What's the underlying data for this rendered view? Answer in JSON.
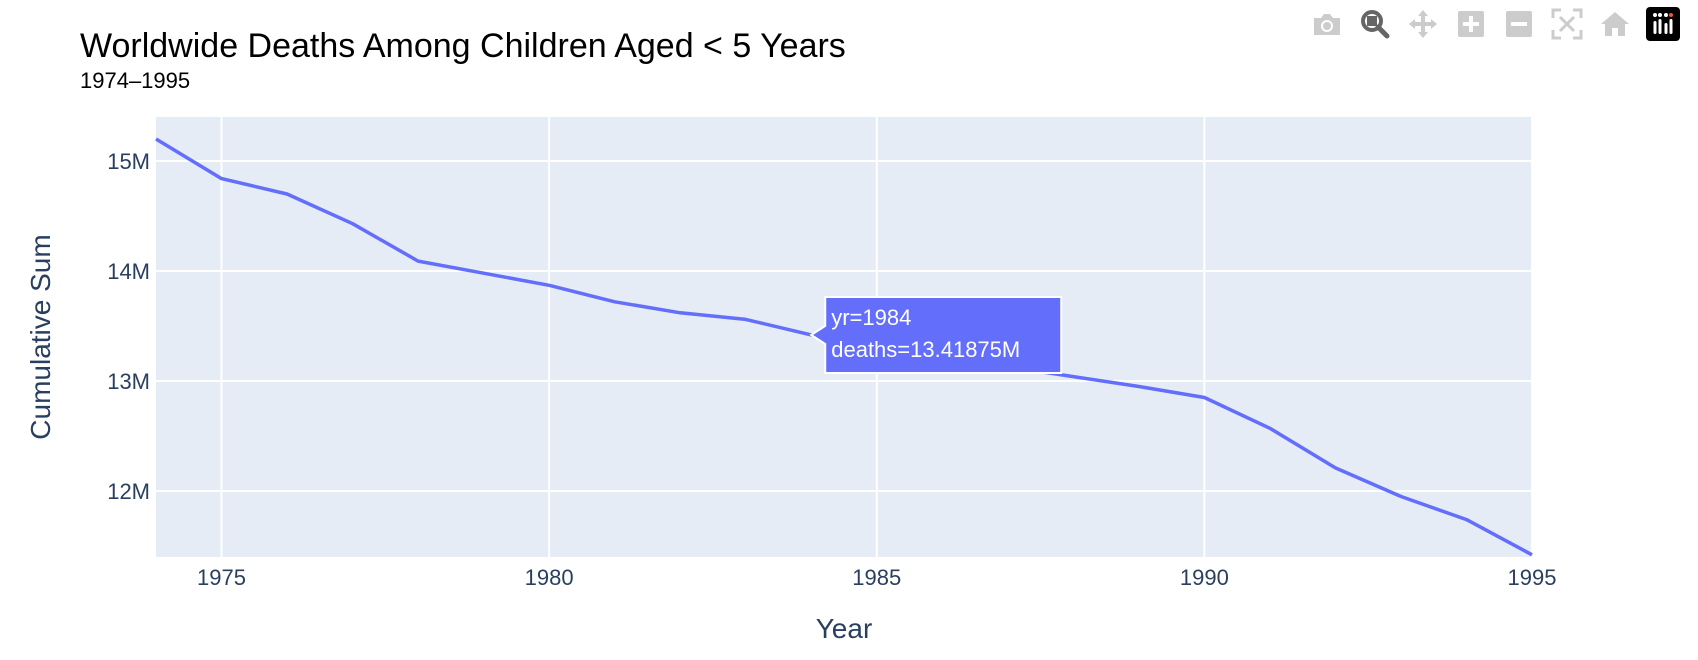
{
  "modebar": {
    "buttons": [
      {
        "name": "camera-icon",
        "label": "Download plot as a png"
      },
      {
        "name": "zoom-icon",
        "label": "Zoom"
      },
      {
        "name": "pan-icon",
        "label": "Pan"
      },
      {
        "name": "zoom-in-icon",
        "label": "Zoom in"
      },
      {
        "name": "zoom-out-icon",
        "label": "Zoom out"
      },
      {
        "name": "autoscale-icon",
        "label": "Autoscale"
      },
      {
        "name": "home-icon",
        "label": "Reset axes"
      },
      {
        "name": "plotly-logo-icon",
        "label": "Produced with Plotly"
      }
    ]
  },
  "colors": {
    "line": "#636efa",
    "plot_bg": "#e5ecf6",
    "grid": "#ffffff",
    "text": "#2a3f5f",
    "modebar_icon": "#cccccc",
    "modebar_active": "#666666"
  },
  "chart_data": {
    "type": "line",
    "title": "Worldwide Deaths Among Children Aged < 5 Years",
    "subtitle": "1974–1995",
    "xlabel": "Year",
    "ylabel": "Cumulative Sum",
    "xlim": [
      1974,
      1995
    ],
    "ylim": [
      11400000,
      15400000
    ],
    "xticks": [
      1975,
      1980,
      1985,
      1990,
      1995
    ],
    "xtick_labels": [
      "1975",
      "1980",
      "1985",
      "1990",
      "1995"
    ],
    "yticks": [
      12000000,
      13000000,
      14000000,
      15000000
    ],
    "ytick_labels": [
      "12M",
      "13M",
      "14M",
      "15M"
    ],
    "grid": true,
    "series": [
      {
        "x": [
          1974,
          1975,
          1976,
          1977,
          1978,
          1979,
          1980,
          1981,
          1982,
          1983,
          1984,
          1985,
          1986,
          1987,
          1988,
          1989,
          1990,
          1991,
          1992,
          1993,
          1994,
          1995
        ],
        "y": [
          15200000,
          14840000,
          14700000,
          14430000,
          14090000,
          13980000,
          13870000,
          13720000,
          13620000,
          13560000,
          13418750,
          13380000,
          13260000,
          13130000,
          13040000,
          12950000,
          12850000,
          12570000,
          12210000,
          11950000,
          11740000,
          11420000
        ]
      }
    ],
    "hover": {
      "x": 1984,
      "y": 13418750,
      "lines": [
        "yr=1984",
        "deaths=13.41875M"
      ]
    }
  }
}
